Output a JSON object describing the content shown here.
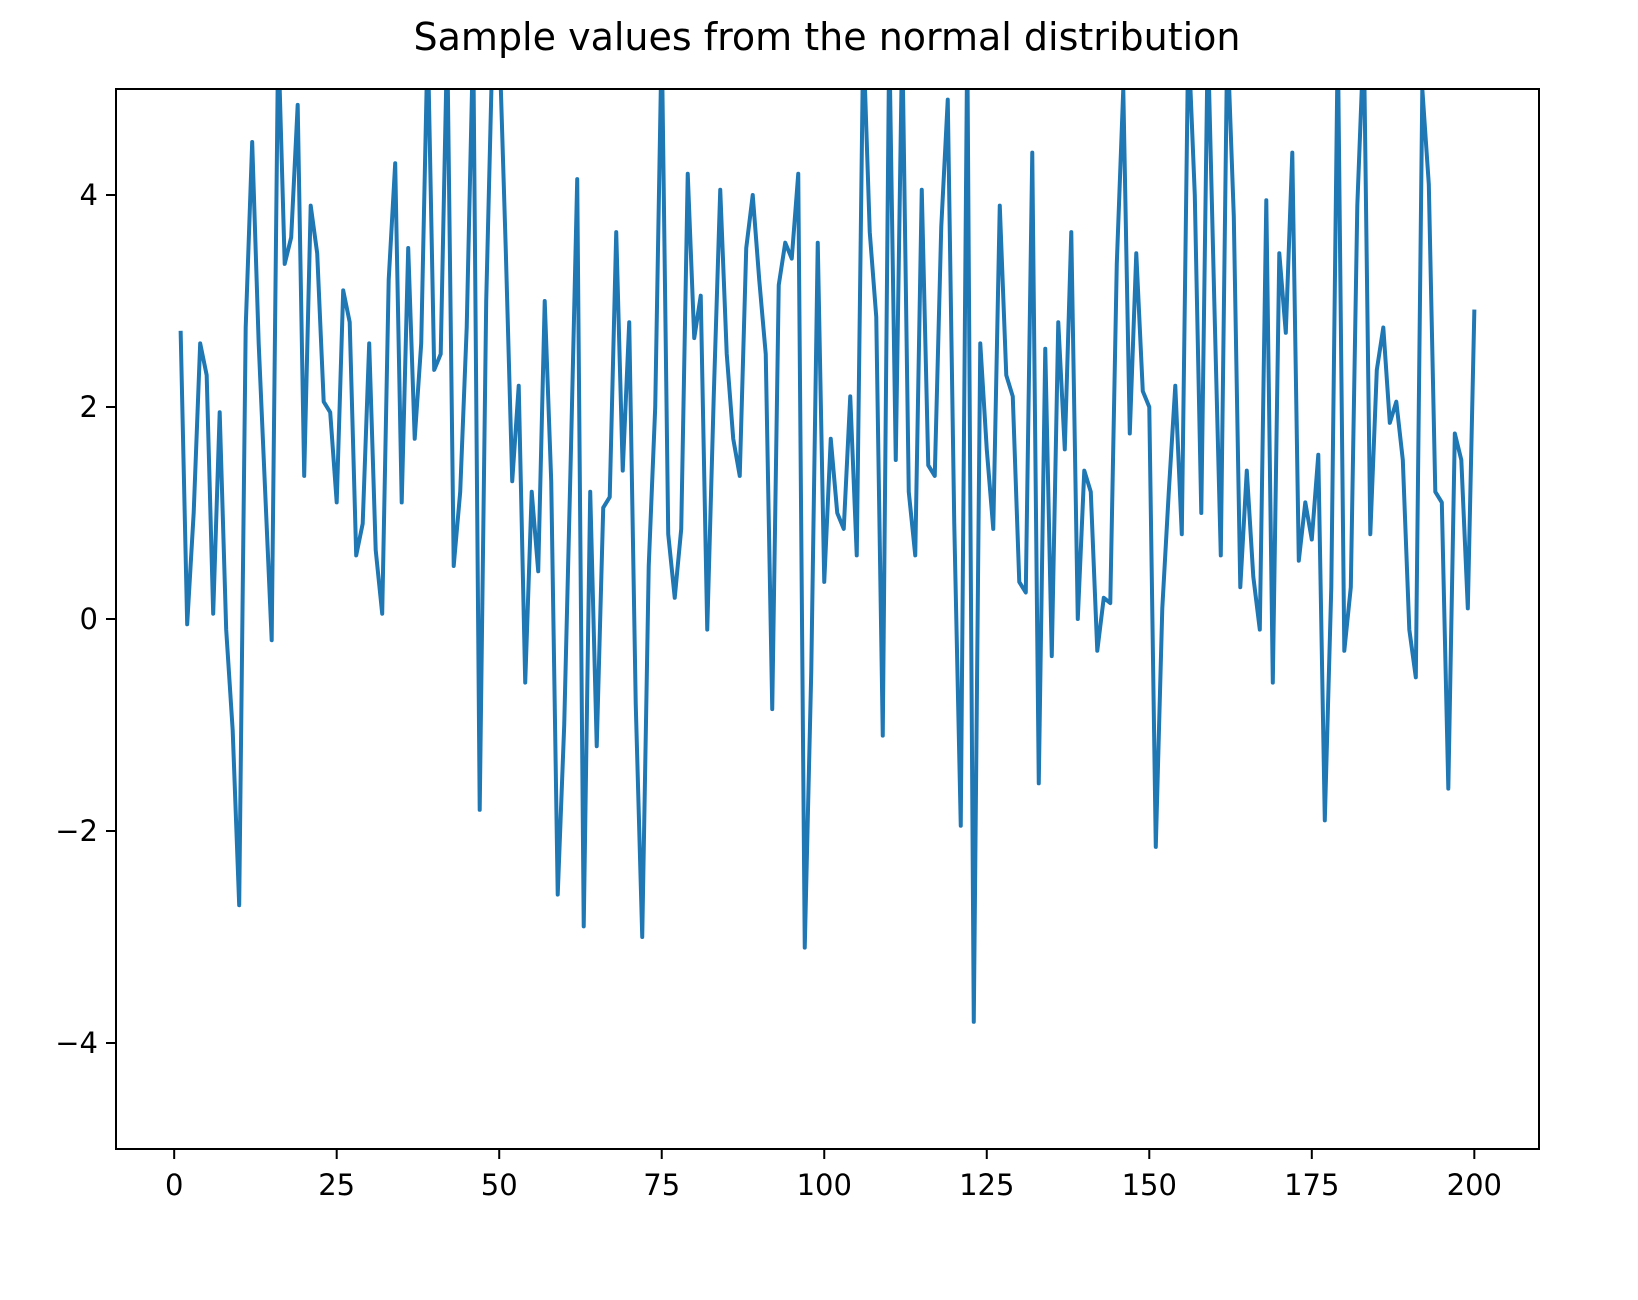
{
  "chart_data": {
    "type": "line",
    "title": "Sample values from the normal distribution",
    "x": [
      1,
      2,
      3,
      4,
      5,
      6,
      7,
      8,
      9,
      10,
      11,
      12,
      13,
      14,
      15,
      16,
      17,
      18,
      19,
      20,
      21,
      22,
      23,
      24,
      25,
      26,
      27,
      28,
      29,
      30,
      31,
      32,
      33,
      34,
      35,
      36,
      37,
      38,
      39,
      40,
      41,
      42,
      43,
      44,
      45,
      46,
      47,
      48,
      49,
      50,
      51,
      52,
      53,
      54,
      55,
      56,
      57,
      58,
      59,
      60,
      61,
      62,
      63,
      64,
      65,
      66,
      67,
      68,
      69,
      70,
      71,
      72,
      73,
      74,
      75,
      76,
      77,
      78,
      79,
      80,
      81,
      82,
      83,
      84,
      85,
      86,
      87,
      88,
      89,
      90,
      91,
      92,
      93,
      94,
      95,
      96,
      97,
      98,
      99,
      100,
      101,
      102,
      103,
      104,
      105,
      106,
      107,
      108,
      109,
      110,
      111,
      112,
      113,
      114,
      115,
      116,
      117,
      118,
      119,
      120,
      121,
      122,
      123,
      124,
      125,
      126,
      127,
      128,
      129,
      130,
      131,
      132,
      133,
      134,
      135,
      136,
      137,
      138,
      139,
      140,
      141,
      142,
      143,
      144,
      145,
      146,
      147,
      148,
      149,
      150,
      151,
      152,
      153,
      154,
      155,
      156,
      157,
      158,
      159,
      160,
      161,
      162,
      163,
      164,
      165,
      166,
      167,
      168,
      169,
      170,
      171,
      172,
      173,
      174,
      175,
      176,
      177,
      178,
      179,
      180,
      181,
      182,
      183,
      184,
      185,
      186,
      187,
      188,
      189,
      190,
      191,
      192,
      193,
      194,
      195,
      196,
      197,
      198,
      199,
      200
    ],
    "series": [
      {
        "color": "#1f77b4",
        "values": [
          2.7,
          -0.05,
          1.0,
          2.6,
          2.3,
          0.05,
          1.95,
          -0.1,
          -1.05,
          -2.7,
          2.75,
          4.5,
          2.6,
          1.2,
          -0.2,
          5.5,
          3.35,
          3.6,
          4.85,
          1.35,
          3.9,
          3.45,
          2.05,
          1.95,
          1.1,
          3.1,
          2.8,
          0.6,
          0.9,
          2.6,
          0.65,
          0.05,
          3.2,
          4.3,
          1.1,
          3.5,
          1.7,
          2.6,
          5.5,
          2.35,
          2.5,
          5.5,
          0.5,
          1.2,
          2.75,
          5.5,
          -1.8,
          3.0,
          5.5,
          5.5,
          3.5,
          1.3,
          2.2,
          -0.6,
          1.2,
          0.45,
          3.0,
          1.3,
          -2.6,
          -1.0,
          1.5,
          4.15,
          -2.9,
          1.2,
          -1.2,
          1.05,
          1.15,
          3.65,
          1.4,
          2.8,
          -0.8,
          -3.0,
          0.5,
          2.0,
          5.5,
          0.8,
          0.2,
          0.85,
          4.2,
          2.65,
          3.05,
          -0.1,
          2.1,
          4.05,
          2.5,
          1.7,
          1.35,
          3.5,
          4.0,
          3.2,
          2.5,
          -0.85,
          3.15,
          3.55,
          3.4,
          4.2,
          -3.1,
          -0.5,
          3.55,
          0.35,
          1.7,
          1.0,
          0.85,
          2.1,
          0.6,
          5.5,
          3.65,
          2.85,
          -1.1,
          5.5,
          1.5,
          5.5,
          1.2,
          0.6,
          4.05,
          1.45,
          1.35,
          3.7,
          4.9,
          0.9,
          -1.95,
          5.5,
          -3.8,
          2.6,
          1.6,
          0.85,
          3.9,
          2.3,
          2.1,
          0.35,
          0.25,
          4.4,
          -1.55,
          2.55,
          -0.35,
          2.8,
          1.6,
          3.65,
          0.0,
          1.4,
          1.2,
          -0.3,
          0.2,
          0.15,
          3.35,
          5.0,
          1.75,
          3.45,
          2.15,
          2.0,
          -2.15,
          0.1,
          1.2,
          2.2,
          0.8,
          5.5,
          4.0,
          1.0,
          5.5,
          3.0,
          0.6,
          5.5,
          3.8,
          0.3,
          1.4,
          0.4,
          -0.1,
          3.95,
          -0.6,
          3.45,
          2.7,
          4.4,
          0.55,
          1.1,
          0.75,
          1.55,
          -1.9,
          0.3,
          5.5,
          -0.3,
          0.3,
          3.9,
          5.5,
          0.8,
          2.35,
          2.75,
          1.85,
          2.05,
          1.5,
          -0.1,
          -0.55,
          5.0,
          4.1,
          1.2,
          1.1,
          -1.6,
          1.75,
          1.5,
          0.1,
          2.9
        ]
      }
    ],
    "xlim": [
      -8.95,
      209.95
    ],
    "ylim": [
      -5,
      5
    ],
    "xticks": [
      0,
      25,
      50,
      75,
      100,
      125,
      150,
      175,
      200
    ],
    "yticks": [
      {
        "value": -4,
        "label": "−4"
      },
      {
        "value": -2,
        "label": "−2"
      },
      0,
      2,
      4
    ],
    "grid": false
  }
}
